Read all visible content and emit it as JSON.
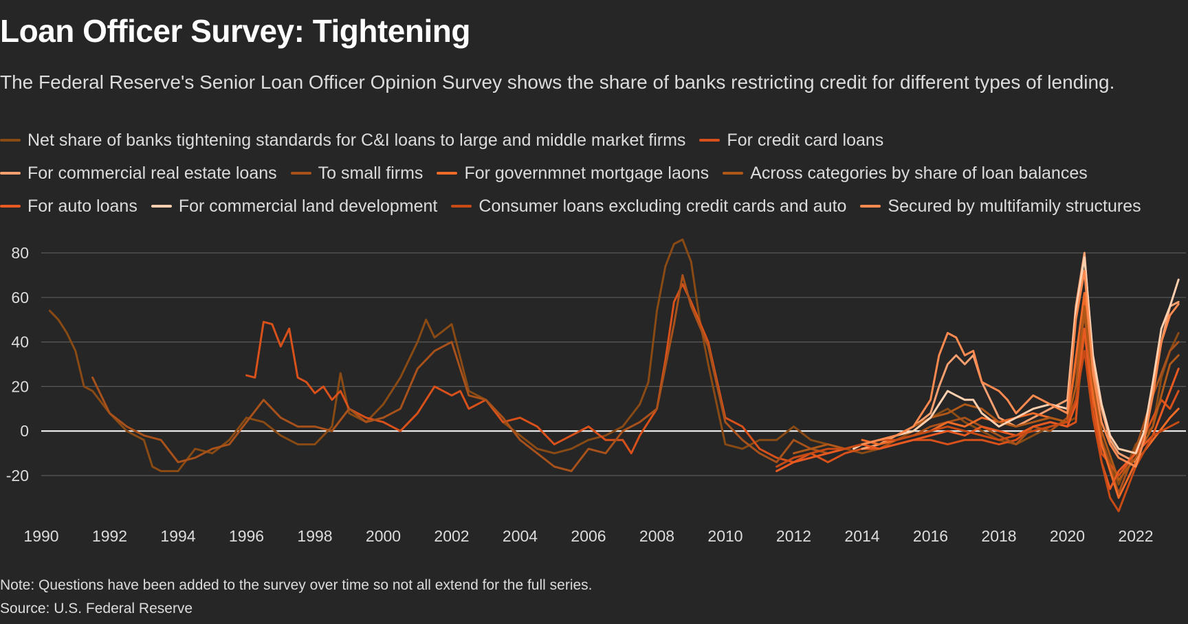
{
  "header": {
    "title": "Loan Officer Survey: Tightening",
    "subtitle": "The Federal Reserve's Senior Loan Officer Opinion Survey shows the share of banks restricting credit for different types of lending."
  },
  "footer": {
    "note": "Note: Questions have been added to the survey over time so not all extend for the full series.",
    "source": "Source: U.S. Federal Reserve"
  },
  "chart_data": {
    "type": "line",
    "title": "Loan Officer Survey: Tightening",
    "xlabel": "",
    "ylabel": "",
    "xlim": [
      1989.8,
      2023.4
    ],
    "ylim": [
      -40,
      88
    ],
    "yticks": [
      80,
      60,
      40,
      20,
      0,
      -20
    ],
    "ytick_labels": [
      "80",
      "60",
      "40",
      "20",
      "0",
      "-20"
    ],
    "xticks": [
      1990,
      1992,
      1994,
      1996,
      1998,
      2000,
      2002,
      2004,
      2006,
      2008,
      2010,
      2012,
      2014,
      2016,
      2018,
      2020,
      2022
    ],
    "xtick_labels": [
      "1990",
      "1992",
      "1994",
      "1996",
      "1998",
      "2000",
      "2002",
      "2004",
      "2006",
      "2008",
      "2010",
      "2012",
      "2014",
      "2016",
      "2018",
      "2020",
      "2022"
    ],
    "grid": true,
    "zero_line": true,
    "legend_position": "top",
    "series": [
      {
        "name": "Net share of banks tightening standards for C&I loans to large and middle market firms",
        "color": "#8a4a14",
        "x": [
          1990.25,
          1990.5,
          1990.75,
          1991,
          1991.25,
          1991.5,
          1992,
          1992.5,
          1993,
          1993.25,
          1993.5,
          1994,
          1994.5,
          1995,
          1995.5,
          1996,
          1996.5,
          1997,
          1997.5,
          1998,
          1998.5,
          1998.75,
          1999,
          1999.5,
          2000,
          2000.5,
          2001,
          2001.25,
          2001.5,
          2002,
          2002.5,
          2003,
          2003.5,
          2004,
          2004.5,
          2005,
          2005.5,
          2006,
          2006.5,
          2007,
          2007.5,
          2007.75,
          2008,
          2008.25,
          2008.5,
          2008.75,
          2009,
          2009.25,
          2009.5,
          2010,
          2010.5,
          2011,
          2011.5,
          2012,
          2012.5,
          2013,
          2013.5,
          2014,
          2014.5,
          2015,
          2015.5,
          2016,
          2016.5,
          2017,
          2017.5,
          2018,
          2018.5,
          2019,
          2019.5,
          2020,
          2020.25,
          2020.5,
          2020.75,
          2021,
          2021.5,
          2022,
          2022.5,
          2022.75,
          2023,
          2023.25
        ],
        "y": [
          54,
          50,
          44,
          36,
          20,
          18,
          8,
          0,
          -4,
          -16,
          -18,
          -18,
          -8,
          -10,
          -4,
          6,
          4,
          -2,
          -6,
          -6,
          2,
          26,
          8,
          4,
          12,
          24,
          40,
          50,
          42,
          48,
          18,
          14,
          4,
          -2,
          -8,
          -10,
          -8,
          -4,
          -2,
          2,
          12,
          22,
          54,
          74,
          84,
          86,
          76,
          50,
          30,
          -6,
          -8,
          -4,
          -4,
          2,
          -4,
          -6,
          -8,
          -10,
          -8,
          -4,
          0,
          6,
          10,
          4,
          0,
          -4,
          -6,
          -2,
          2,
          4,
          6,
          44,
          16,
          -4,
          -24,
          -6,
          2,
          24,
          36,
          44
        ]
      },
      {
        "name": "For credit card loans",
        "color": "#d8501a",
        "x": [
          1996,
          1996.25,
          1996.5,
          1996.75,
          1997,
          1997.25,
          1997.5,
          1997.75,
          1998,
          1998.25,
          1998.5,
          1998.75,
          1999,
          1999.5,
          2000,
          2000.5,
          2001,
          2001.25,
          2001.5,
          2002,
          2002.25,
          2002.5,
          2003,
          2003.5,
          2004,
          2004.5,
          2005,
          2005.5,
          2006,
          2006.5,
          2007,
          2007.25,
          2007.5,
          2008,
          2008.25,
          2008.5,
          2008.75,
          2009,
          2009.5,
          2010,
          2010.5,
          2011,
          2011.5,
          2012,
          2012.5,
          2013,
          2013.5,
          2014,
          2014.5,
          2015,
          2015.5,
          2016,
          2016.5,
          2017,
          2017.5,
          2018,
          2018.5,
          2019,
          2019.5,
          2020,
          2020.25,
          2020.5,
          2020.75,
          2021,
          2021.5,
          2022,
          2022.5,
          2022.75,
          2023,
          2023.25
        ],
        "y": [
          25,
          24,
          49,
          48,
          38,
          46,
          24,
          22,
          17,
          20,
          14,
          18,
          10,
          6,
          4,
          0,
          8,
          14,
          20,
          16,
          18,
          10,
          14,
          4,
          6,
          2,
          -6,
          -2,
          2,
          -4,
          -4,
          -10,
          -2,
          10,
          32,
          58,
          66,
          58,
          40,
          6,
          2,
          -8,
          -12,
          -14,
          -10,
          -14,
          -10,
          -8,
          -8,
          -6,
          -4,
          -4,
          -6,
          -4,
          -4,
          -6,
          -4,
          2,
          4,
          2,
          4,
          58,
          10,
          -10,
          -20,
          -10,
          6,
          14,
          10,
          18
        ]
      },
      {
        "name": "For commercial real estate loans",
        "color": "#f8a070",
        "x": [
          2014,
          2014.5,
          2015,
          2015.5,
          2016,
          2016.25,
          2016.5,
          2016.75,
          2017,
          2017.25,
          2017.5,
          2018,
          2018.5,
          2019,
          2019.5,
          2020,
          2020.25,
          2020.5,
          2020.75,
          2021,
          2021.25,
          2021.5,
          2022,
          2022.25,
          2022.5,
          2022.75,
          2023,
          2023.25
        ],
        "y": [
          -8,
          -6,
          -2,
          2,
          8,
          20,
          30,
          34,
          30,
          34,
          22,
          6,
          2,
          6,
          10,
          14,
          56,
          80,
          30,
          10,
          -4,
          -10,
          -14,
          -4,
          20,
          40,
          56,
          58
        ]
      },
      {
        "name": "To small firms",
        "color": "#a8511a",
        "x": [
          1991.5,
          1992,
          1992.5,
          1993,
          1993.5,
          1994,
          1994.5,
          1995,
          1995.5,
          1996,
          1996.5,
          1997,
          1997.5,
          1998,
          1998.5,
          1999,
          1999.5,
          2000,
          2000.5,
          2001,
          2001.5,
          2002,
          2002.5,
          2003,
          2003.5,
          2004,
          2004.5,
          2005,
          2005.5,
          2006,
          2006.5,
          2007,
          2007.5,
          2008,
          2008.5,
          2008.75,
          2009,
          2009.5,
          2010,
          2010.5,
          2011,
          2011.5,
          2012,
          2012.5,
          2013,
          2013.5,
          2014,
          2014.5,
          2015,
          2015.5,
          2016,
          2016.5,
          2017,
          2017.5,
          2018,
          2018.5,
          2019,
          2019.5,
          2020,
          2020.5,
          2020.75,
          2021,
          2021.5,
          2022,
          2022.5,
          2023,
          2023.25
        ],
        "y": [
          24,
          8,
          2,
          -2,
          -4,
          -14,
          -12,
          -8,
          -6,
          4,
          14,
          6,
          2,
          2,
          0,
          10,
          4,
          6,
          10,
          28,
          36,
          40,
          16,
          14,
          6,
          -4,
          -10,
          -16,
          -18,
          -8,
          -10,
          0,
          4,
          10,
          48,
          70,
          56,
          38,
          4,
          -4,
          -10,
          -14,
          -4,
          -8,
          -10,
          -8,
          -6,
          -8,
          -4,
          -2,
          2,
          4,
          6,
          2,
          -2,
          -6,
          2,
          0,
          6,
          52,
          20,
          -4,
          -28,
          -8,
          16,
          36,
          40
        ]
      },
      {
        "name": "For governmnet mortgage laons",
        "color": "#f06a28",
        "x": [
          2014,
          2014.5,
          2015,
          2015.5,
          2016,
          2016.5,
          2017,
          2017.5,
          2018,
          2018.5,
          2019,
          2019.5,
          2020,
          2020.5,
          2020.75,
          2021,
          2021.5,
          2022,
          2022.5,
          2023,
          2023.25
        ],
        "y": [
          -4,
          -6,
          -4,
          -2,
          0,
          4,
          2,
          6,
          4,
          6,
          8,
          6,
          4,
          62,
          16,
          -6,
          -30,
          -14,
          -4,
          6,
          10
        ]
      },
      {
        "name": "Across categories by share of loan balances",
        "color": "#b05818",
        "x": [
          2012,
          2012.5,
          2013,
          2013.5,
          2014,
          2014.5,
          2015,
          2015.5,
          2016,
          2016.5,
          2017,
          2017.5,
          2018,
          2018.5,
          2019,
          2019.5,
          2020,
          2020.25,
          2020.5,
          2020.75,
          2021,
          2021.5,
          2022,
          2022.5,
          2022.75,
          2023,
          2023.25
        ],
        "y": [
          -10,
          -8,
          -6,
          -8,
          -6,
          -4,
          -2,
          2,
          6,
          8,
          12,
          10,
          4,
          2,
          4,
          6,
          4,
          20,
          56,
          22,
          0,
          -22,
          -12,
          2,
          16,
          30,
          34
        ]
      },
      {
        "name": "For auto loans",
        "color": "#e85a22",
        "x": [
          2011.5,
          2012,
          2012.5,
          2013,
          2013.5,
          2014,
          2014.5,
          2015,
          2015.5,
          2016,
          2016.5,
          2017,
          2017.5,
          2018,
          2018.5,
          2019,
          2019.5,
          2020,
          2020.25,
          2020.5,
          2020.75,
          2021,
          2021.25,
          2021.5,
          2022,
          2022.5,
          2022.75,
          2023,
          2023.25
        ],
        "y": [
          -18,
          -14,
          -12,
          -10,
          -8,
          -6,
          -8,
          -6,
          -4,
          -2,
          0,
          -2,
          2,
          0,
          -2,
          2,
          4,
          2,
          12,
          46,
          8,
          -14,
          -26,
          -18,
          -10,
          -2,
          8,
          18,
          28
        ]
      },
      {
        "name": "For commercial land development",
        "color": "#ffd0b0",
        "x": [
          2013.75,
          2014,
          2014.5,
          2015,
          2015.5,
          2016,
          2016.25,
          2016.5,
          2016.75,
          2017,
          2017.25,
          2017.5,
          2018,
          2018.5,
          2019,
          2019.5,
          2020,
          2020.25,
          2020.5,
          2020.75,
          2021,
          2021.25,
          2021.5,
          2022,
          2022.25,
          2022.5,
          2022.75,
          2023,
          2023.25
        ],
        "y": [
          -8,
          -6,
          -4,
          -2,
          0,
          6,
          12,
          18,
          16,
          14,
          14,
          8,
          2,
          6,
          10,
          12,
          10,
          54,
          78,
          34,
          12,
          -2,
          -8,
          -10,
          0,
          22,
          46,
          56,
          68
        ]
      },
      {
        "name": "Consumer loans excluding credit cards and auto",
        "color": "#c84a14",
        "x": [
          2011.5,
          2012,
          2012.5,
          2013,
          2013.5,
          2014,
          2014.5,
          2015,
          2015.5,
          2016,
          2016.5,
          2017,
          2017.5,
          2018,
          2018.5,
          2019,
          2019.5,
          2020,
          2020.25,
          2020.5,
          2020.75,
          2021,
          2021.25,
          2021.5,
          2022,
          2022.5,
          2023,
          2023.25
        ],
        "y": [
          -16,
          -12,
          -10,
          -8,
          -8,
          -6,
          -4,
          -4,
          -2,
          0,
          2,
          0,
          -2,
          -4,
          -2,
          0,
          2,
          4,
          14,
          36,
          6,
          -14,
          -30,
          -36,
          -16,
          -2,
          2,
          4
        ]
      },
      {
        "name": "Secured by multifamily structures",
        "color": "#ff8a50",
        "x": [
          2014,
          2014.5,
          2015,
          2015.5,
          2016,
          2016.25,
          2016.5,
          2016.75,
          2017,
          2017.25,
          2017.5,
          2018,
          2018.25,
          2018.5,
          2019,
          2019.5,
          2020,
          2020.25,
          2020.5,
          2020.75,
          2021,
          2021.25,
          2021.5,
          2022,
          2022.25,
          2022.5,
          2022.75,
          2023,
          2023.25
        ],
        "y": [
          -6,
          -4,
          -2,
          2,
          14,
          34,
          44,
          42,
          34,
          36,
          22,
          18,
          14,
          8,
          16,
          12,
          8,
          50,
          72,
          26,
          4,
          -6,
          -12,
          -16,
          -4,
          16,
          40,
          52,
          57
        ]
      }
    ]
  }
}
